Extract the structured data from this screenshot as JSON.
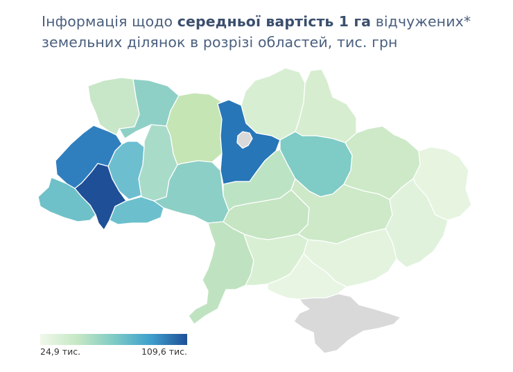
{
  "title": {
    "part1": "Інформація щодо ",
    "bold": "середньої вартість 1 га",
    "part2": " відчужених*",
    "line2": "земельних ділянок в розрізі областей, тис. грн"
  },
  "legend": {
    "min_label": "24,9 тис.",
    "max_label": "109,6 тис.",
    "min_color": "#f0f8eb",
    "max_color": "#1f4f97"
  },
  "colors": {
    "no_data": "#d9d9d9",
    "scale": [
      "#f0f8eb",
      "#c6e8c4",
      "#7fcbc5",
      "#3fa0cd",
      "#1f4f97"
    ]
  },
  "regions": [
    {
      "name": "volyn",
      "color": "#c8e6c8"
    },
    {
      "name": "rivne",
      "color": "#8fd0c6"
    },
    {
      "name": "lviv",
      "color": "#2f7fbf"
    },
    {
      "name": "zakarpattia",
      "color": "#6fc1c9"
    },
    {
      "name": "ivano-frankivsk",
      "color": "#1f4f97"
    },
    {
      "name": "ternopil",
      "color": "#6dbfd0"
    },
    {
      "name": "chernivtsi",
      "color": "#6cc0cd"
    },
    {
      "name": "khmelnytskyi",
      "color": "#a9dbc9"
    },
    {
      "name": "zhytomyr",
      "color": "#c6e5b5"
    },
    {
      "name": "vinnytsia",
      "color": "#8ccfc6"
    },
    {
      "name": "kyiv-oblast",
      "color": "#2776b8"
    },
    {
      "name": "kyiv-city",
      "color": "#d9d9d9"
    },
    {
      "name": "chernihiv",
      "color": "#d7eed3"
    },
    {
      "name": "sumy",
      "color": "#d6edcf"
    },
    {
      "name": "cherkasy",
      "color": "#bde3c5"
    },
    {
      "name": "poltava",
      "color": "#7fcbc5"
    },
    {
      "name": "kharkiv",
      "color": "#cde9c8"
    },
    {
      "name": "luhansk",
      "color": "#e6f4e0"
    },
    {
      "name": "kirovohrad",
      "color": "#c5e5c3"
    },
    {
      "name": "dnipropetrovsk",
      "color": "#cde9c8"
    },
    {
      "name": "donetsk",
      "color": "#e0f2dc"
    },
    {
      "name": "odesa",
      "color": "#bfe3c0"
    },
    {
      "name": "mykolaiv",
      "color": "#d8efd3"
    },
    {
      "name": "zaporizhzhia",
      "color": "#e3f3de"
    },
    {
      "name": "kherson",
      "color": "#e8f5e3"
    },
    {
      "name": "crimea",
      "color": "#d9d9d9"
    }
  ]
}
